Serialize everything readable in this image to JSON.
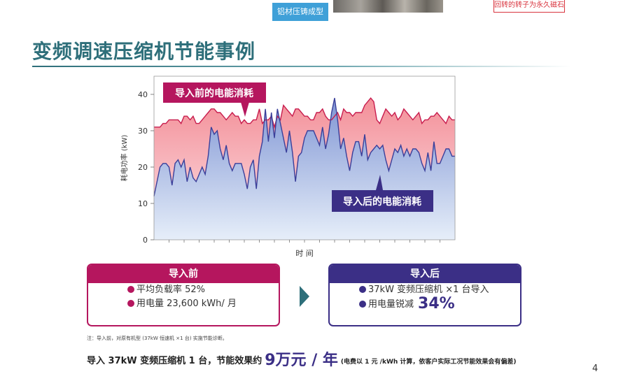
{
  "header": {
    "tag_label": "铝材压铸成型",
    "note_label": "回转的转子为永久磁石"
  },
  "page": {
    "title": "变频调速压缩机节能事例",
    "page_number": "4"
  },
  "chart_data": {
    "type": "area",
    "ylabel": "耗电功率 (kW)",
    "xlabel": "时 间",
    "ylim": [
      0,
      45
    ],
    "yticks": [
      0,
      10,
      20,
      30,
      40
    ],
    "grid": false,
    "callouts": {
      "before": "导入前的电能消耗",
      "after": "导入后的电能消耗"
    },
    "colors": {
      "before_line": "#c81d4e",
      "before_fill": "#f38f98",
      "after_line": "#3a3f9a",
      "after_fill": "#7f95d4",
      "before_callout": "#b5165e",
      "after_callout": "#3b2f86"
    },
    "series": [
      {
        "key": "before",
        "name": "导入前的电能消耗",
        "x": [
          0,
          2,
          3,
          4,
          5,
          6,
          7,
          8,
          9,
          10,
          11,
          12,
          13,
          14,
          15,
          16,
          17,
          18,
          19,
          20,
          21,
          22,
          23,
          24,
          25,
          26,
          27,
          28,
          29,
          30,
          31,
          32,
          33,
          34,
          35,
          36,
          37,
          38,
          39,
          40,
          41,
          42,
          43,
          44,
          45,
          46,
          47,
          48,
          49,
          50,
          51,
          52,
          53,
          54,
          55,
          56,
          57,
          58,
          59,
          60,
          61,
          62,
          63,
          64,
          65,
          66,
          67,
          68,
          69,
          70,
          71,
          72,
          73,
          74,
          75,
          76,
          77,
          78,
          79,
          80,
          81,
          82,
          83,
          84,
          85,
          86,
          87,
          88,
          89,
          90,
          91,
          92,
          93,
          94,
          95,
          96,
          97,
          98,
          99,
          100
        ],
        "values": [
          31,
          31,
          32,
          32,
          33,
          33,
          33,
          33,
          32,
          34,
          34,
          33,
          34,
          32,
          32,
          33,
          34,
          35,
          36,
          36,
          35,
          35,
          34,
          33,
          34,
          35,
          34,
          34,
          32,
          33,
          32,
          32,
          33,
          33,
          36,
          32,
          33,
          33,
          34,
          31,
          34,
          33,
          37,
          36,
          35,
          34,
          36,
          36,
          35,
          34,
          34,
          33,
          33,
          35,
          35,
          36,
          34,
          33,
          33,
          34,
          35,
          33,
          36,
          35,
          35,
          34,
          35,
          35,
          35,
          37,
          38,
          39,
          38,
          33,
          32,
          34,
          36,
          35,
          34,
          35,
          33,
          34,
          36,
          35,
          34,
          33,
          34,
          35,
          32,
          33,
          33,
          34,
          34,
          35,
          34,
          33,
          32,
          34,
          33,
          33
        ]
      },
      {
        "key": "after",
        "name": "导入后的电能消耗",
        "x": [
          0,
          2,
          3,
          4,
          5,
          6,
          7,
          8,
          9,
          10,
          11,
          12,
          13,
          14,
          15,
          16,
          17,
          18,
          19,
          20,
          21,
          22,
          23,
          24,
          25,
          26,
          27,
          28,
          29,
          30,
          31,
          32,
          33,
          34,
          35,
          36,
          37,
          38,
          39,
          40,
          41,
          42,
          43,
          44,
          45,
          46,
          47,
          48,
          49,
          50,
          51,
          52,
          53,
          54,
          55,
          56,
          57,
          58,
          59,
          60,
          61,
          62,
          63,
          64,
          65,
          66,
          67,
          68,
          69,
          70,
          71,
          72,
          73,
          74,
          75,
          76,
          77,
          78,
          79,
          80,
          81,
          82,
          83,
          84,
          85,
          86,
          87,
          88,
          89,
          90,
          91,
          92,
          93,
          94,
          95,
          96,
          97,
          98,
          99,
          100
        ],
        "values": [
          12,
          20,
          21,
          21,
          20,
          15,
          21,
          22,
          20,
          22,
          16,
          20,
          17,
          16,
          18,
          20,
          18,
          23,
          31,
          29,
          30,
          25,
          22,
          26,
          21,
          19,
          21,
          21,
          21,
          18,
          14,
          20,
          22,
          14,
          23,
          27,
          36,
          27,
          35,
          28,
          36,
          32,
          28,
          24,
          30,
          24,
          16,
          23,
          24,
          28,
          30,
          30,
          30,
          28,
          26,
          31,
          25,
          29,
          35,
          39,
          33,
          25,
          28,
          23,
          19,
          24,
          27,
          27,
          23,
          29,
          22,
          24,
          25,
          26,
          25,
          26,
          22,
          19,
          22,
          25,
          24,
          26,
          23,
          25,
          23,
          25,
          25,
          24,
          21,
          19,
          24,
          19,
          27,
          21,
          21,
          23,
          25,
          25,
          23,
          23
        ]
      }
    ]
  },
  "boxes": {
    "before": {
      "title": "导入前",
      "line1": "平均负载率 52%",
      "line2": "用电量 23,600 kWh/ 月"
    },
    "after": {
      "title": "导入后",
      "line1": "37kW 变频压缩机 ×1 台导入",
      "line2_prefix": "用电量锐减",
      "line2_value": "34%"
    }
  },
  "footnote": "注：导入前，对原有机型 (37kW 恒速机 ×1 台) 实施节能诊断。",
  "summary": {
    "prefix": "导入 37kW 变频压缩机 1 台，节能效果约",
    "value": "9万元 / 年",
    "note": "(电费以 1 元 /kWh 计算，依客户实际工况节能效果会有偏差)"
  }
}
